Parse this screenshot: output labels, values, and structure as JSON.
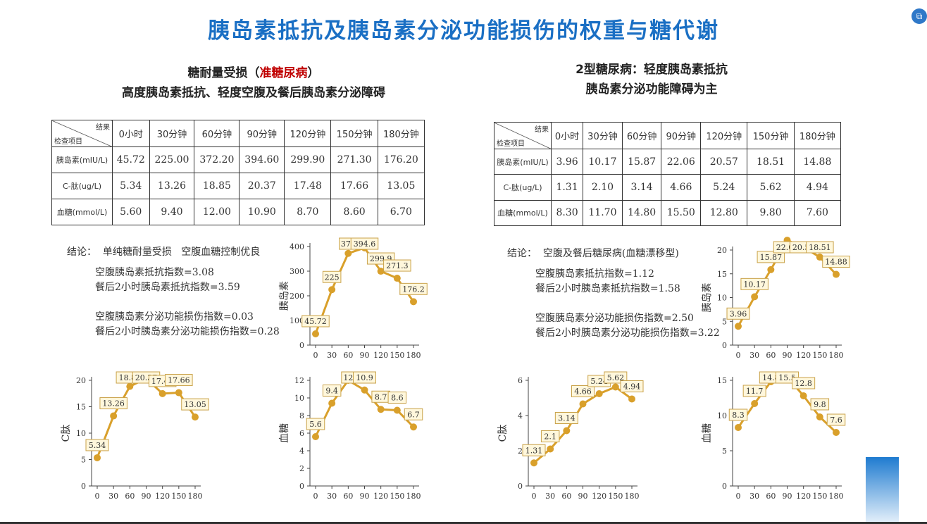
{
  "title": "胰岛素抵抗及胰岛素分泌功能损伤的权重与糖代谢",
  "left": {
    "subtitle_line1_a": "糖耐量受损（",
    "subtitle_line1_red": "准糖尿病",
    "subtitle_line1_b": "）",
    "subtitle_line2": "高度胰岛素抵抗、轻度空腹及餐后胰岛素分泌障碍",
    "table": {
      "corner_top": "结果",
      "corner_bottom": "检查项目",
      "columns": [
        "0小时",
        "30分钟",
        "60分钟",
        "90分钟",
        "120分钟",
        "150分钟",
        "180分钟"
      ],
      "rows": [
        {
          "label": "胰岛素(mIU/L)",
          "values": [
            "45.72",
            "225.00",
            "372.20",
            "394.60",
            "299.90",
            "271.30",
            "176.20"
          ]
        },
        {
          "label": "C-肽(ug/L)",
          "values": [
            "5.34",
            "13.26",
            "18.85",
            "20.37",
            "17.48",
            "17.66",
            "13.05"
          ]
        },
        {
          "label": "血糖(mmol/L)",
          "values": [
            "5.60",
            "9.40",
            "12.00",
            "10.90",
            "8.70",
            "8.60",
            "6.70"
          ]
        }
      ]
    },
    "conclusion": {
      "heading": "结论：  单纯糖耐量受损   空腹血糖控制优良",
      "lines": [
        "空腹胰岛素抵抗指数=3.08",
        "餐后2小时胰岛素抵抗指数=3.59",
        "",
        "空腹胰岛素分泌功能损伤指数=0.03",
        "餐后2小时胰岛素分泌功能损伤指数=0.28"
      ]
    }
  },
  "right": {
    "subtitle_line1": "2型糖尿病：轻度胰岛素抵抗",
    "subtitle_line2": "胰岛素分泌功能障碍为主",
    "table": {
      "corner_top": "结果",
      "corner_bottom": "检查项目",
      "columns": [
        "0小时",
        "30分钟",
        "60分钟",
        "90分钟",
        "120分钟",
        "150分钟",
        "180分钟"
      ],
      "rows": [
        {
          "label": "胰岛素(mIU/L)",
          "values": [
            "3.96",
            "10.17",
            "15.87",
            "22.06",
            "20.57",
            "18.51",
            "14.88"
          ]
        },
        {
          "label": "C-肽(ug/L)",
          "values": [
            "1.31",
            "2.10",
            "3.14",
            "4.66",
            "5.24",
            "5.62",
            "4.94"
          ]
        },
        {
          "label": "血糖(mmol/L)",
          "values": [
            "8.30",
            "11.70",
            "14.80",
            "15.50",
            "12.80",
            "9.80",
            "7.60"
          ]
        }
      ]
    },
    "conclusion": {
      "heading": "结论：  空腹及餐后糖尿病(血糖漂移型)",
      "lines": [
        "空腹胰岛素抵抗指数=1.12",
        "餐后2小时胰岛素抵抗指数=1.58",
        "",
        "空腹胰岛素分泌功能损伤指数=2.50",
        "餐后2小时胰岛素分泌功能损伤指数=3.22"
      ]
    }
  },
  "colors": {
    "title": "#1a6fc4",
    "series": "#d9a02b",
    "label_bg": "#fff7dc",
    "label_border": "#c9a24a"
  },
  "chart_data": [
    {
      "id": "left-insulin",
      "type": "line",
      "ylabel": "胰岛素",
      "x": [
        0,
        30,
        60,
        90,
        120,
        150,
        180
      ],
      "y": [
        45.72,
        225,
        372.2,
        394.6,
        299.9,
        271.3,
        176.2
      ],
      "labels": [
        "45.72",
        "225",
        "372",
        "394.6",
        "299.9",
        "271.3",
        "176.2"
      ],
      "ylim": [
        0,
        400
      ],
      "yticks": [
        0,
        100,
        200,
        300,
        400
      ]
    },
    {
      "id": "left-cpeptide",
      "type": "line",
      "ylabel": "C肽",
      "x": [
        0,
        30,
        60,
        90,
        120,
        150,
        180
      ],
      "y": [
        5.34,
        13.26,
        18.85,
        20.37,
        17.48,
        17.66,
        13.05
      ],
      "labels": [
        "5.34",
        "13.26",
        "18.85",
        "20.37",
        "17.48",
        "17.66",
        "13.05"
      ],
      "ylim": [
        0,
        20
      ],
      "yticks": [
        0,
        5,
        10,
        15,
        20
      ]
    },
    {
      "id": "left-glucose",
      "type": "line",
      "ylabel": "血糖",
      "x": [
        0,
        30,
        60,
        90,
        120,
        150,
        180
      ],
      "y": [
        5.6,
        9.4,
        12,
        10.9,
        8.7,
        8.6,
        6.7
      ],
      "labels": [
        "5.6",
        "9.4",
        "12",
        "10.9",
        "8.7",
        "8.6",
        "6.7"
      ],
      "ylim": [
        0,
        12
      ],
      "yticks": [
        0,
        2,
        4,
        6,
        8,
        10,
        12
      ]
    },
    {
      "id": "right-insulin",
      "type": "line",
      "ylabel": "胰岛素",
      "x": [
        0,
        30,
        60,
        90,
        120,
        150,
        180
      ],
      "y": [
        3.96,
        10.17,
        15.87,
        22.06,
        20.57,
        18.51,
        14.88
      ],
      "labels": [
        "3.96",
        "10.17",
        "15.87",
        "22.06",
        "20.57",
        "18.51",
        "14.88"
      ],
      "ylim": [
        0,
        20
      ],
      "yticks": [
        0,
        5,
        10,
        15,
        20
      ]
    },
    {
      "id": "right-cpeptide",
      "type": "line",
      "ylabel": "C肽",
      "x": [
        0,
        30,
        60,
        90,
        120,
        150,
        180
      ],
      "y": [
        1.31,
        2.1,
        3.14,
        4.66,
        5.24,
        5.62,
        4.94
      ],
      "labels": [
        "1.31",
        "2.1",
        "3.14",
        "4.66",
        "5.24",
        "5.62",
        "4.94"
      ],
      "ylim": [
        0,
        6
      ],
      "yticks": [
        0,
        2,
        4,
        6
      ]
    },
    {
      "id": "right-glucose",
      "type": "line",
      "ylabel": "血糖",
      "x": [
        0,
        30,
        60,
        90,
        120,
        150,
        180
      ],
      "y": [
        8.3,
        11.7,
        14.8,
        15.5,
        12.8,
        9.8,
        7.6
      ],
      "labels": [
        "8.3",
        "11.7",
        "14.8",
        "15.5",
        "12.8",
        "9.8",
        "7.6"
      ],
      "ylim": [
        0,
        15
      ],
      "yticks": [
        0,
        5,
        10,
        15
      ]
    }
  ]
}
